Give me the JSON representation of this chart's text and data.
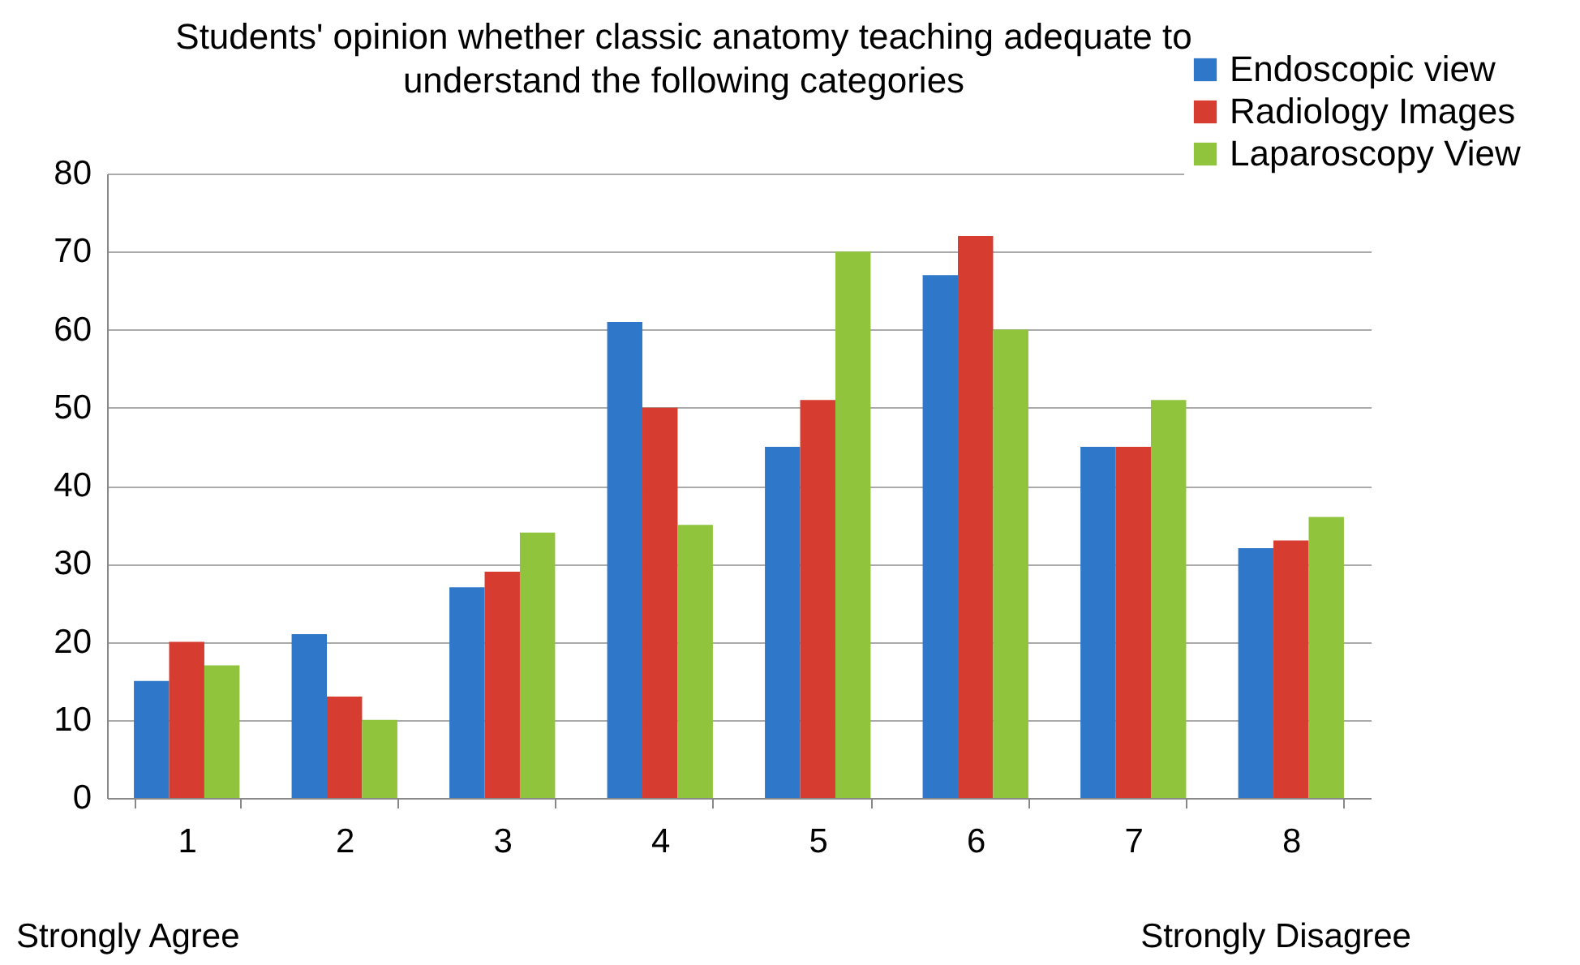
{
  "chart_data": {
    "type": "bar",
    "title": "Students' opinion whether classic anatomy teaching adequate to understand  the following categories",
    "categories": [
      "1",
      "2",
      "3",
      "4",
      "5",
      "6",
      "7",
      "8"
    ],
    "series": [
      {
        "name": "Endoscopic view",
        "color": "#2f78c9",
        "values": [
          15,
          21,
          27,
          61,
          45,
          67,
          45,
          32
        ]
      },
      {
        "name": "Radiology Images",
        "color": "#d63c30",
        "values": [
          20,
          13,
          29,
          50,
          51,
          72,
          45,
          33
        ]
      },
      {
        "name": "Laparoscopy View",
        "color": "#8fc43c",
        "values": [
          17,
          10,
          34,
          35,
          70,
          60,
          51,
          36
        ]
      }
    ],
    "ylim": [
      0,
      80
    ],
    "yticks": [
      0,
      10,
      20,
      30,
      40,
      50,
      60,
      70,
      80
    ],
    "grid": "y",
    "legend": "top right",
    "annotations": [
      "Strongly Agree",
      "Strongly Disagree"
    ]
  }
}
